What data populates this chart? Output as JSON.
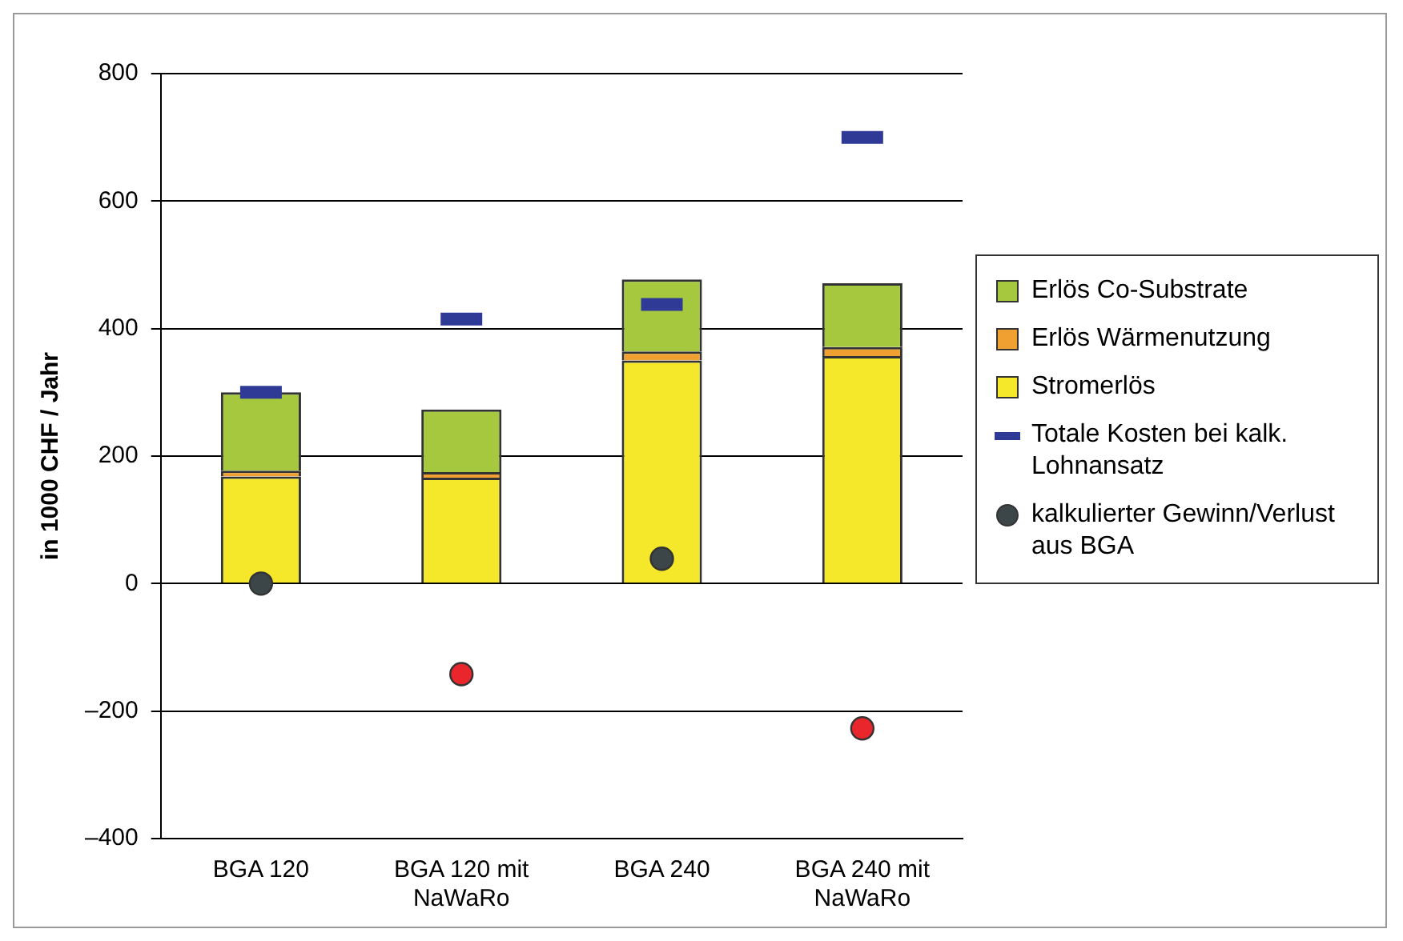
{
  "chart_data": {
    "type": "bar",
    "stacked": true,
    "ylabel": "in 1000 CHF / Jahr",
    "categories": [
      "BGA 120",
      "BGA 120 mit NaWaRo",
      "BGA 240",
      "BGA 240 mit NaWaRo"
    ],
    "series": [
      {
        "name": "Stromerlös",
        "color": "#f5e72a",
        "values": [
          168,
          166,
          350,
          357
        ]
      },
      {
        "name": "Erlös Wärmenutzung",
        "color": "#f0a030",
        "values": [
          9,
          9,
          14,
          14
        ]
      },
      {
        "name": "Erlös Co-Substrate",
        "color": "#a6c83f",
        "values": [
          123,
          98,
          113,
          100
        ]
      },
      {
        "name": "Totale Kosten bei kalk. Lohnansatz",
        "type": "scatter",
        "color": "#2f3a96",
        "values": [
          300,
          415,
          438,
          700
        ]
      },
      {
        "name": "kalkulierter Gewinn/Verlust aus BGA",
        "type": "scatter",
        "marker": "circle",
        "color": "#3c4648",
        "colors": [
          "#3c4648",
          "#e8262b",
          "#3c4648",
          "#e8262b"
        ],
        "values": [
          0,
          -142,
          39,
          -227
        ]
      }
    ],
    "ylim": [
      -400,
      800
    ],
    "yticks": [
      {
        "value": -400,
        "label": "–400"
      },
      {
        "value": -200,
        "label": "–200"
      },
      0,
      200,
      400,
      600,
      800
    ],
    "grid": "y",
    "legend": "right"
  }
}
